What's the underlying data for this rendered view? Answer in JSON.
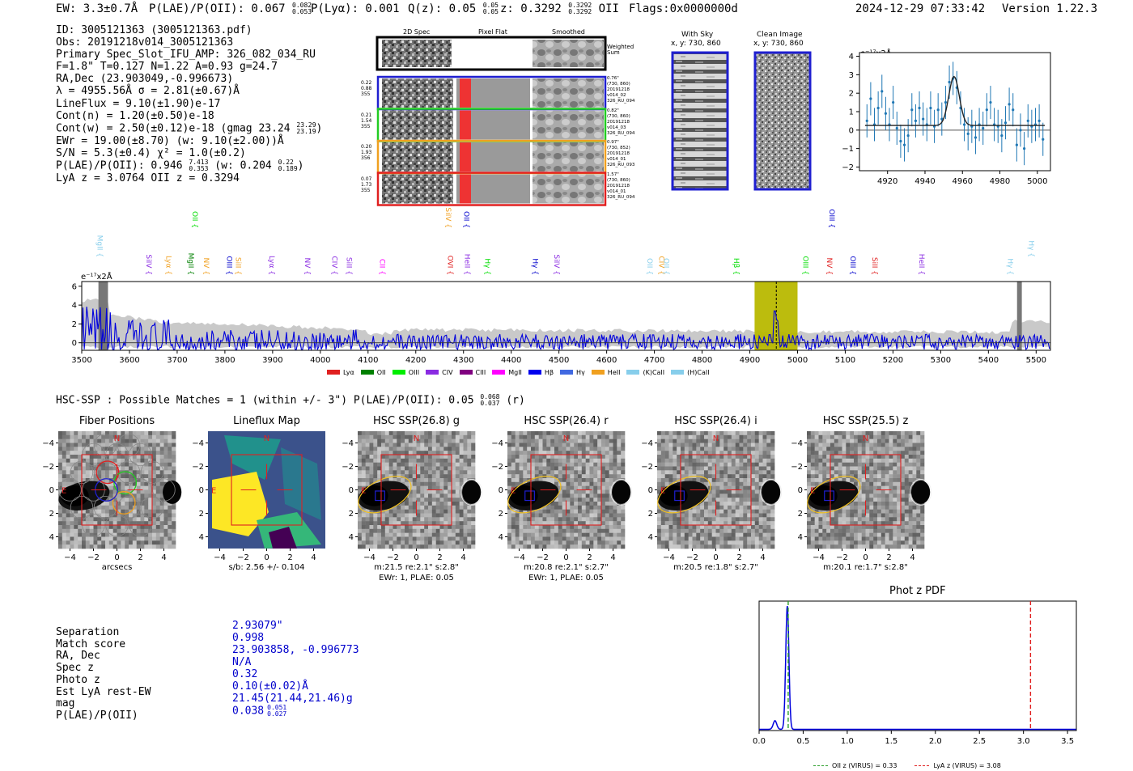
{
  "header": {
    "ew": "EW: 3.3±0.7Å",
    "plae_label": "P(LAE)/P(OII): 0.067",
    "plae_hi": "0.082",
    "plae_lo": "0.053",
    "plya": "P(Lyα): 0.001",
    "qz_label": "Q(z): 0.05",
    "qz_hi": "0.05",
    "qz_lo": "0.05",
    "z_label": "z: 0.3292",
    "z_hi": "0.3292",
    "z_lo": "0.3292",
    "z_line": "OII",
    "flags": "Flags:0x0000000d",
    "timestamp": "2024-12-29 07:33:42",
    "version": "Version 1.22.3"
  },
  "info": {
    "id": "ID: 3005121363 (3005121363.pdf)",
    "obs": "Obs: 20191218v014_3005121363",
    "slot": "Primary Spec_Slot_IFU_AMP: 326_082_034_RU",
    "fit": "F=1.8\"  T=0.127  N=1.22  A=0.93  g=24.7",
    "radec": "RA,Dec (23.903049,-0.996673)",
    "lambda": "λ = 4955.56Å  σ = 2.81(±0.67)Å",
    "lineflux": "LineFlux = 9.10(±1.90)e-17",
    "contn": "Cont(n) = 1.20(±0.50)e-18",
    "contw": "Cont(w) = 2.50(±0.12)e-18 (gmag 23.24",
    "gmag_hi": "23.29",
    "gmag_lo": "23.19",
    "ewr": "EWr = 19.00(±8.70) (w: 9.10(±2.00))Å",
    "sn": "S/N = 5.3(±0.4)  χ² = 1.0(±0.2)",
    "plae": "P(LAE)/P(OII): 0.946",
    "plae_hi": "7.413",
    "plae_lo": "0.353",
    "plae_w": "(w: 0.204",
    "plae_w_hi": "0.22",
    "plae_w_lo": "0.189",
    "lyaz": "LyA z = 3.0764  OII z = 0.3294"
  },
  "cutouts": {
    "col_2d": "2D Spec",
    "col_flat": "Pixel Flat",
    "col_smooth": "Smoothed",
    "weighted_sum": "Weighted Sum",
    "rows": [
      {
        "left": [
          "0.22",
          "0.88",
          "355"
        ],
        "right": [
          "0.76\"",
          "(730, 860)",
          "20191218",
          "v014_02",
          "326_RU_094"
        ],
        "color": "#1f1fd0"
      },
      {
        "left": [
          "0.21",
          "1.54",
          "355"
        ],
        "right": [
          "0.82\"",
          "(730, 860)",
          "20191218",
          "v014_03",
          "326_RU_094"
        ],
        "color": "#22cc22"
      },
      {
        "left": [
          "0.20",
          "1.93",
          "356"
        ],
        "right": [
          "0.97\"",
          "(730, 852)",
          "20191218",
          "v014_01",
          "326_RU_093"
        ],
        "color": "#f0a020"
      },
      {
        "left": [
          "0.07",
          "1.73",
          "355"
        ],
        "right": [
          "1.57\"",
          "(730, 860)",
          "20191218",
          "v014_01",
          "326_RU_094"
        ],
        "color": "#e02020"
      }
    ],
    "with_sky": "With Sky",
    "with_sky_xy": "x, y: 730, 860",
    "clean": "Clean Image",
    "clean_xy": "x, y: 730, 860"
  },
  "colors": {
    "fit_blue": "#1f77b4",
    "spec_blue": "#0000dd",
    "red": "#e02020",
    "olive": "#b8b800",
    "gray": "#c0c0c0"
  },
  "chart_data": [
    {
      "name": "line_fit_inset",
      "type": "scatter",
      "ylabel": "e⁻¹⁷x2Å",
      "xlim": [
        4905,
        5007
      ],
      "ylim": [
        -2.2,
        4.2
      ],
      "xticks": [
        4920,
        4940,
        4960,
        4980,
        5000
      ],
      "yticks": [
        -2,
        -1,
        0,
        1,
        2,
        3,
        4
      ],
      "x": [
        4909,
        4911,
        4913,
        4915,
        4917,
        4919,
        4921,
        4923,
        4925,
        4927,
        4929,
        4931,
        4933,
        4935,
        4937,
        4939,
        4941,
        4943,
        4945,
        4947,
        4949,
        4951,
        4953,
        4955,
        4957,
        4959,
        4961,
        4963,
        4965,
        4967,
        4969,
        4971,
        4973,
        4975,
        4977,
        4979,
        4981,
        4983,
        4985,
        4987,
        4989,
        4991,
        4993,
        4995,
        4997,
        4999,
        5001,
        5003
      ],
      "y": [
        0.5,
        1.7,
        0.3,
        1.2,
        2.1,
        0.9,
        0.3,
        1.5,
        0.1,
        -0.6,
        -0.8,
        -0.3,
        1.1,
        0.5,
        1.2,
        0.6,
        0.3,
        1.2,
        0.2,
        1.1,
        0.6,
        1.5,
        2.6,
        2.8,
        2.3,
        1.2,
        0.3,
        -0.2,
        0.2,
        -0.4,
        0.3,
        0.1,
        1.1,
        1.5,
        0.3,
        0.2,
        -0.3,
        0.4,
        1.4,
        1.1,
        -0.8,
        0.0,
        -1.0,
        0.5,
        0.2,
        0.3,
        0.5,
        -0.5
      ],
      "err": 0.9,
      "fit": {
        "center": 4955.5,
        "sigma": 2.8,
        "amp": 2.65,
        "baseline": 0.25
      }
    },
    {
      "name": "full_spectrum",
      "type": "line",
      "ylabel": "e⁻¹⁷x2Å",
      "xlim": [
        3500,
        5530
      ],
      "ylim": [
        -0.8,
        6.5
      ],
      "xticks": [
        3500,
        3600,
        3700,
        3800,
        3900,
        4000,
        4100,
        4200,
        4300,
        4400,
        4500,
        4600,
        4700,
        4800,
        4900,
        5000,
        5100,
        5200,
        5300,
        5400,
        5500
      ],
      "yticks": [
        0,
        2,
        4,
        6
      ],
      "highlight_band": [
        4910,
        5000
      ],
      "line_marker": 4955.5,
      "masked_regions": [
        [
          3535,
          3555
        ],
        [
          5460,
          5470
        ]
      ],
      "line_labels": [
        {
          "text": "MgII",
          "x": 3528,
          "color": "#87ceeb",
          "tier": 1
        },
        {
          "text": "SiIV",
          "x": 3631,
          "color": "#8a2be2",
          "tier": 2
        },
        {
          "text": "Lyα",
          "x": 3672,
          "color": "#f0a020",
          "tier": 2
        },
        {
          "text": "MgII",
          "x": 3719,
          "color": "#008000",
          "tier": 2
        },
        {
          "text": "OII",
          "x": 3727,
          "color": "#00dd00",
          "tier": 0
        },
        {
          "text": "NV",
          "x": 3751,
          "color": "#f0a020",
          "tier": 2
        },
        {
          "text": "OIII",
          "x": 3799,
          "color": "#0000cc",
          "tier": 2
        },
        {
          "text": "SiII",
          "x": 3818,
          "color": "#f0a020",
          "tier": 2
        },
        {
          "text": "Lyα",
          "x": 3888,
          "color": "#8a2be2",
          "tier": 2
        },
        {
          "text": "NV",
          "x": 3963,
          "color": "#8a2be2",
          "tier": 2
        },
        {
          "text": "CIV",
          "x": 4020,
          "color": "#8a2be2",
          "tier": 2
        },
        {
          "text": "SiII",
          "x": 4050,
          "color": "#8a2be2",
          "tier": 2
        },
        {
          "text": "CII",
          "x": 4120,
          "color": "#ff00ff",
          "tier": 2
        },
        {
          "text": "SiIV",
          "x": 4258,
          "color": "#f0a020",
          "tier": 0
        },
        {
          "text": "OVI",
          "x": 4262,
          "color": "#e02020",
          "tier": 2
        },
        {
          "text": "OII",
          "x": 4296,
          "color": "#0000cc",
          "tier": 0
        },
        {
          "text": "HeII",
          "x": 4298,
          "color": "#8a2be2",
          "tier": 2
        },
        {
          "text": "Hγ",
          "x": 4340,
          "color": "#00dd00",
          "tier": 2
        },
        {
          "text": "Hγ",
          "x": 4440,
          "color": "#0000cc",
          "tier": 2
        },
        {
          "text": "SiIV",
          "x": 4485,
          "color": "#8a2be2",
          "tier": 2
        },
        {
          "text": "OII",
          "x": 4680,
          "color": "#87ceeb",
          "tier": 2
        },
        {
          "text": "CIV",
          "x": 4705,
          "color": "#f0a020",
          "tier": 2
        },
        {
          "text": "OII",
          "x": 4715,
          "color": "#87ceeb",
          "tier": 2
        },
        {
          "text": "Hβ",
          "x": 4862,
          "color": "#00dd00",
          "tier": 2
        },
        {
          "text": "OIII",
          "x": 5007,
          "color": "#00dd00",
          "tier": 2
        },
        {
          "text": "NV",
          "x": 5057,
          "color": "#e02020",
          "tier": 2
        },
        {
          "text": "OIII",
          "x": 5062,
          "color": "#0000cc",
          "tier": 0
        },
        {
          "text": "OIII",
          "x": 5106,
          "color": "#0000cc",
          "tier": 2
        },
        {
          "text": "SiII",
          "x": 5152,
          "color": "#e02020",
          "tier": 2
        },
        {
          "text": "HeII",
          "x": 5250,
          "color": "#8a2be2",
          "tier": 2
        },
        {
          "text": "Hγ",
          "x": 5436,
          "color": "#87ceeb",
          "tier": 2
        },
        {
          "text": "Hγ",
          "x": 5480,
          "color": "#87ceeb",
          "tier": 1
        }
      ],
      "legend": [
        {
          "label": "Lyα",
          "color": "#e02020"
        },
        {
          "label": "OII",
          "color": "#008000"
        },
        {
          "label": "OIII",
          "color": "#00ee00"
        },
        {
          "label": "CIV",
          "color": "#8a2be2"
        },
        {
          "label": "CIII",
          "color": "#800080"
        },
        {
          "label": "MgII",
          "color": "#ff00ff"
        },
        {
          "label": "Hβ",
          "color": "#0000ee"
        },
        {
          "label": "Hγ",
          "color": "#4169e1"
        },
        {
          "label": "HeII",
          "color": "#f0a020"
        },
        {
          "label": "(K)CaII",
          "color": "#87ceeb"
        },
        {
          "label": "(H)CaII",
          "color": "#87ceeb"
        }
      ]
    },
    {
      "name": "photz_pdf",
      "type": "line",
      "title": "Phot z PDF",
      "xlim": [
        0.0,
        3.6
      ],
      "ylim": [
        0,
        1.05
      ],
      "xticks": [
        0.0,
        0.5,
        1.0,
        1.5,
        2.0,
        2.5,
        3.0,
        3.5
      ],
      "peaks": [
        {
          "z": 0.32,
          "height": 1.0,
          "width": 0.018
        },
        {
          "z": 0.18,
          "height": 0.07,
          "width": 0.02
        }
      ],
      "vlines": [
        {
          "x": 0.33,
          "color": "#2ca02c",
          "label": "OII z (VIRUS) = 0.33"
        },
        {
          "x": 3.08,
          "color": "#e02020",
          "label": "LyA z (VIRUS) = 3.08"
        }
      ]
    }
  ],
  "hsc": {
    "summary": "HSC-SSP : Possible Matches = 1 (within +/- 3\")  P(LAE)/P(OII): 0.05",
    "summary_hi": "0.068",
    "summary_lo": "0.037",
    "summary_suffix": "(r)",
    "panels": [
      {
        "title": "Fiber Positions",
        "caption1": "arcsecs",
        "caption2": ""
      },
      {
        "title": "Lineflux Map",
        "caption1": "s/b: 2.56 +/- 0.104",
        "caption2": ""
      },
      {
        "title": "HSC SSP(26.8) g",
        "caption1": "m:21.5  re:2.1\"  s:2.8\"",
        "caption2": "EWr: 1, PLAE: 0.05"
      },
      {
        "title": "HSC SSP(26.4) r",
        "caption1": "m:20.8  re:2.1\"  s:2.7\"",
        "caption2": "EWr: 1, PLAE: 0.05"
      },
      {
        "title": "HSC SSP(26.4) i",
        "caption1": "m:20.5  re:1.8\"  s:2.7\"",
        "caption2": ""
      },
      {
        "title": "HSC SSP(25.5) z",
        "caption1": "m:20.1  re:1.7\"  s:2.8\"",
        "caption2": ""
      }
    ],
    "axis_ticks": [
      "−4",
      "−2",
      "0",
      "2",
      "4"
    ],
    "north": "N",
    "east": "E"
  },
  "match": {
    "labels": [
      "Separation",
      "Match score",
      "RA, Dec",
      "Spec z",
      "Photo z",
      "Est LyA rest-EW",
      "mag",
      "P(LAE)/P(OII)"
    ],
    "values": [
      "2.93079\"",
      "0.998",
      "23.903858, -0.996773",
      "N/A",
      "0.32",
      "0.10(±0.02)Å",
      "21.45(21.44,21.46)g",
      "0.038"
    ],
    "plae_hi": "0.051",
    "plae_lo": "0.027"
  }
}
